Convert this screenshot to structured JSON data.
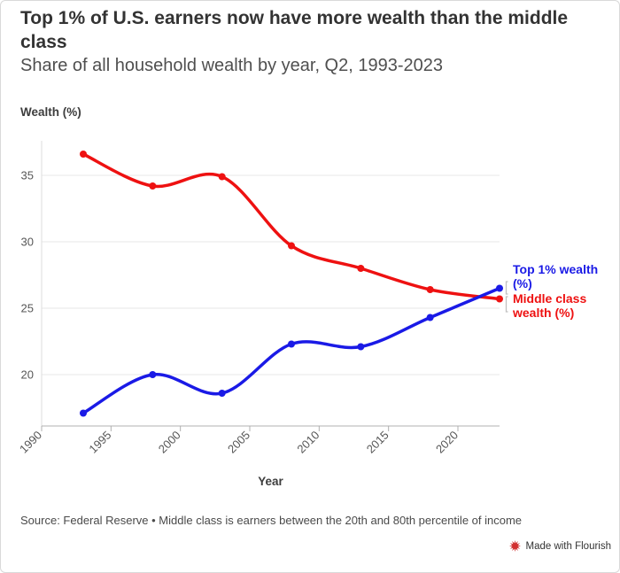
{
  "chart_data": {
    "type": "line",
    "title": "Top 1% of U.S. earners now have more wealth than the middle class",
    "subtitle": "Share of all household wealth by year, Q2, 1993-2023",
    "xlabel": "Year",
    "ylabel": "Wealth (%)",
    "x": [
      1993,
      1998,
      2003,
      2008,
      2013,
      2018,
      2023
    ],
    "series": [
      {
        "name": "Top 1% wealth (%)",
        "label_text": "Top 1% wealth\n(%)",
        "color": "#1a1ae6",
        "values": [
          17.1,
          20.0,
          18.6,
          22.3,
          22.1,
          24.3,
          26.5
        ]
      },
      {
        "name": "Middle class wealth (%)",
        "label_text": "Middle class\nwealth (%)",
        "color": "#ee1111",
        "values": [
          36.6,
          34.2,
          34.9,
          29.7,
          28.0,
          26.4,
          25.7
        ]
      }
    ],
    "x_ticks": [
      1990,
      1995,
      2000,
      2005,
      2010,
      2015,
      2020
    ],
    "y_ticks": [
      20,
      25,
      30,
      35
    ],
    "xlim": [
      1990,
      2023
    ],
    "ylim": [
      16.1,
      37.5
    ],
    "grid": "horizontal-only",
    "legend_position": "line-end-labels",
    "source_note": "Source: Federal Reserve • Middle class is earners between the 20th and 80th percentile of income",
    "attribution": "Made with Flourish"
  },
  "colors": {
    "top1_line": "#1a1ae6",
    "middle_line": "#ee1111",
    "gridline": "#e7e7e7",
    "axis_line": "#b0b0b0",
    "y_axis_line": "#dcdcdc",
    "bracket": "#c0c0c0",
    "title_text": "#333333",
    "subtitle_text": "#4f4f4f",
    "tick_text": "#565656",
    "flourish_red": "#d12f2f"
  }
}
